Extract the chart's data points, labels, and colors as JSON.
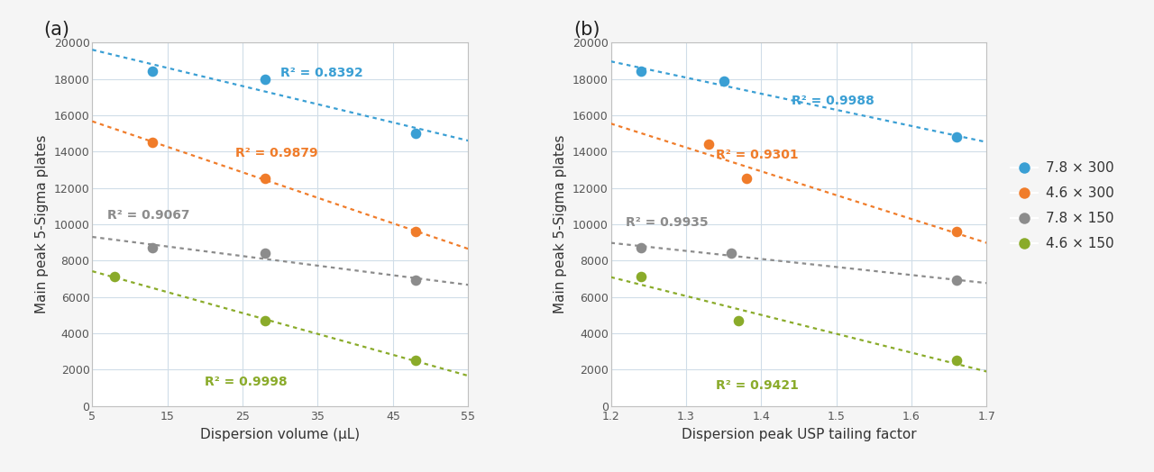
{
  "panel_a": {
    "xlabel": "Dispersion volume (μL)",
    "ylabel": "Main peak 5-Sigma plates",
    "xlim": [
      5,
      55
    ],
    "ylim": [
      0,
      20000
    ],
    "xticks": [
      5,
      15,
      25,
      35,
      45,
      55
    ],
    "yticks": [
      0,
      2000,
      4000,
      6000,
      8000,
      10000,
      12000,
      14000,
      16000,
      18000,
      20000
    ],
    "series": [
      {
        "label": "7.8 × 300",
        "color": "#3a9fd4",
        "x": [
          13,
          28,
          48
        ],
        "y": [
          18400,
          18000,
          15000
        ],
        "r2": "R² = 0.8392",
        "r2_x": 30,
        "r2_y": 18300
      },
      {
        "label": "4.6 × 300",
        "color": "#f07c2a",
        "x": [
          13,
          28,
          48
        ],
        "y": [
          14500,
          12500,
          9600
        ],
        "r2": "R² = 0.9879",
        "r2_x": 24,
        "r2_y": 13900
      },
      {
        "label": "7.8 × 150",
        "color": "#8c8c8c",
        "x": [
          13,
          28,
          48
        ],
        "y": [
          8700,
          8400,
          6900
        ],
        "r2": "R² = 0.9067",
        "r2_x": 7,
        "r2_y": 10500
      },
      {
        "label": "4.6 × 150",
        "color": "#8aab2a",
        "x": [
          8,
          28,
          48
        ],
        "y": [
          7100,
          4700,
          2500
        ],
        "r2": "R² = 0.9998",
        "r2_x": 20,
        "r2_y": 1300
      }
    ]
  },
  "panel_b": {
    "xlabel": "Dispersion peak USP tailing factor",
    "ylabel": "Main peak 5-Sigma plates",
    "xlim": [
      1.2,
      1.7
    ],
    "ylim": [
      0,
      20000
    ],
    "xticks": [
      1.2,
      1.3,
      1.4,
      1.5,
      1.6,
      1.7
    ],
    "yticks": [
      0,
      2000,
      4000,
      6000,
      8000,
      10000,
      12000,
      14000,
      16000,
      18000,
      20000
    ],
    "series": [
      {
        "label": "7.8 × 300",
        "color": "#3a9fd4",
        "x": [
          1.24,
          1.35,
          1.66
        ],
        "y": [
          18400,
          17900,
          14800
        ],
        "r2": "R² = 0.9988",
        "r2_x": 1.44,
        "r2_y": 16800
      },
      {
        "label": "4.6 × 300",
        "color": "#f07c2a",
        "x": [
          1.33,
          1.38,
          1.66
        ],
        "y": [
          14400,
          12500,
          9600
        ],
        "r2": "R² = 0.9301",
        "r2_x": 1.34,
        "r2_y": 13800
      },
      {
        "label": "7.8 × 150",
        "color": "#8c8c8c",
        "x": [
          1.24,
          1.36,
          1.66
        ],
        "y": [
          8700,
          8400,
          6900
        ],
        "r2": "R² = 0.9935",
        "r2_x": 1.22,
        "r2_y": 10100
      },
      {
        "label": "4.6 × 150",
        "color": "#8aab2a",
        "x": [
          1.24,
          1.37,
          1.66
        ],
        "y": [
          7100,
          4700,
          2500
        ],
        "r2": "R² = 0.9421",
        "r2_x": 1.34,
        "r2_y": 1100
      }
    ]
  },
  "legend_labels": [
    "7.8 × 300",
    "4.6 × 300",
    "7.8 × 150",
    "4.6 × 150"
  ],
  "legend_colors": [
    "#3a9fd4",
    "#f07c2a",
    "#8c8c8c",
    "#8aab2a"
  ],
  "panel_labels": [
    "(a)",
    "(b)"
  ],
  "bg_color": "#f5f5f5",
  "plot_bg": "#ffffff",
  "grid_color": "#d0dde8",
  "spine_color": "#c0c0c0"
}
